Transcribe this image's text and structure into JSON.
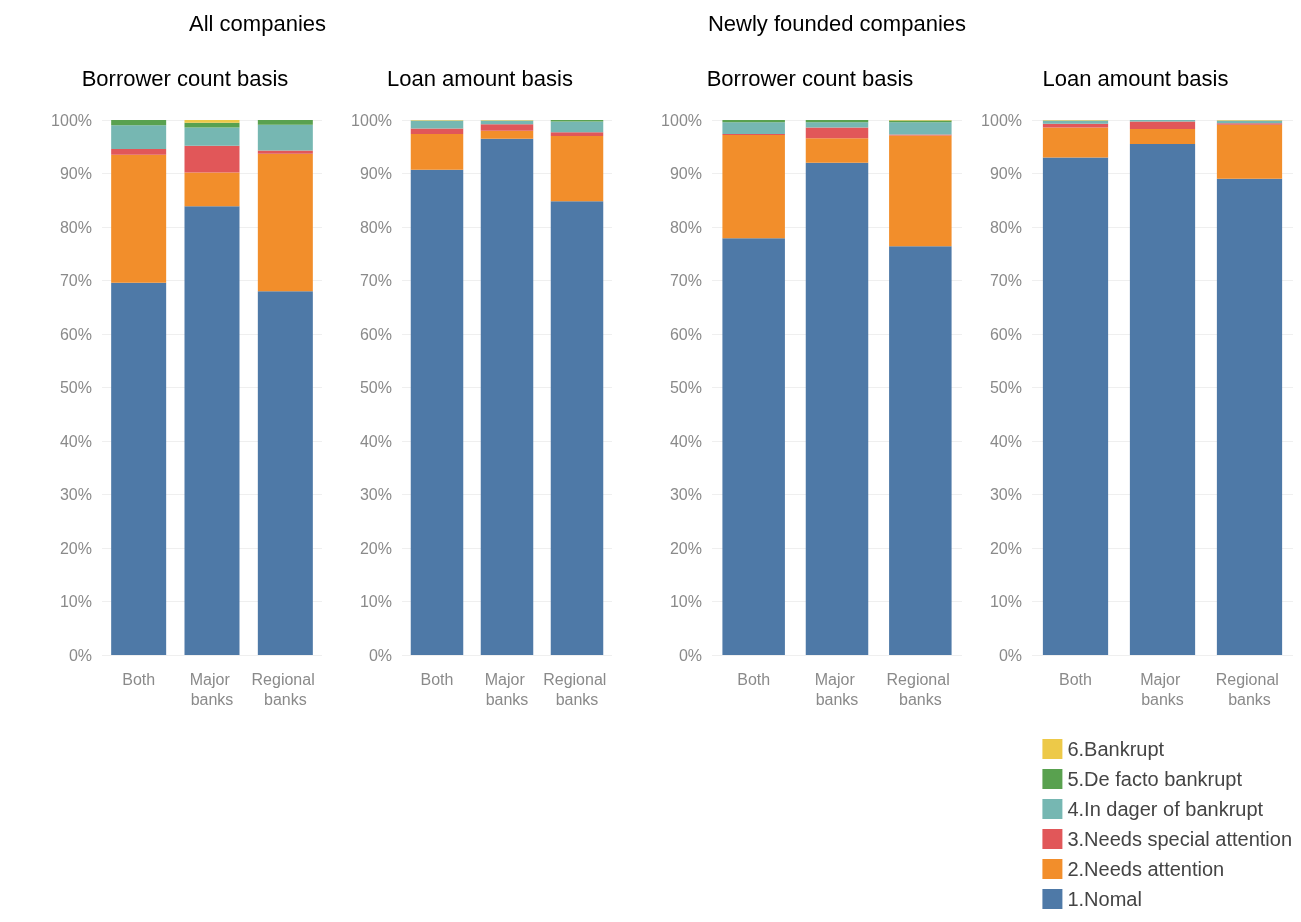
{
  "chart_data": [
    {
      "type": "bar",
      "stacked": true,
      "title": "Borrower count basis",
      "annotations": [
        "All companies"
      ],
      "categories": [
        "Both",
        "Major banks",
        "Regional banks"
      ],
      "ylim": [
        0,
        100
      ],
      "yticks": [
        {
          "value": 0,
          "label": "0%"
        },
        {
          "value": 10,
          "label": "10%"
        },
        {
          "value": 20,
          "label": "20%"
        },
        {
          "value": 30,
          "label": "30%"
        },
        {
          "value": 40,
          "label": "40%"
        },
        {
          "value": 50,
          "label": "50%"
        },
        {
          "value": 60,
          "label": "60%"
        },
        {
          "value": 70,
          "label": "70%"
        },
        {
          "value": 80,
          "label": "80%"
        },
        {
          "value": 90,
          "label": "90%"
        },
        {
          "value": 100,
          "label": "100%"
        }
      ],
      "grid": "y",
      "legend": false,
      "series": [
        {
          "color": "#4e79a7",
          "values": [
            69.6,
            83.9,
            68.0
          ]
        },
        {
          "color": "#f28e2b",
          "values": [
            23.9,
            6.3,
            25.7
          ]
        },
        {
          "color": "#e15759",
          "values": [
            1.1,
            5.0,
            0.6
          ]
        },
        {
          "color": "#76b7b2",
          "values": [
            4.4,
            3.4,
            4.8
          ]
        },
        {
          "color": "#59a14f",
          "values": [
            1.0,
            0.9,
            0.9
          ]
        },
        {
          "color": "#edc948",
          "values": [
            0,
            0.5,
            0
          ]
        }
      ]
    },
    {
      "type": "bar",
      "stacked": true,
      "title": "Loan amount basis",
      "categories": [
        "Both",
        "Major banks",
        "Regional banks"
      ],
      "ylim": [
        0,
        100
      ],
      "yticks": [
        {
          "value": 0,
          "label": "0%"
        },
        {
          "value": 10,
          "label": "10%"
        },
        {
          "value": 20,
          "label": "20%"
        },
        {
          "value": 30,
          "label": "30%"
        },
        {
          "value": 40,
          "label": "40%"
        },
        {
          "value": 50,
          "label": "50%"
        },
        {
          "value": 60,
          "label": "60%"
        },
        {
          "value": 70,
          "label": "70%"
        },
        {
          "value": 80,
          "label": "80%"
        },
        {
          "value": 90,
          "label": "90%"
        },
        {
          "value": 100,
          "label": "100%"
        }
      ],
      "grid": "y",
      "legend": false,
      "series": [
        {
          "color": "#4e79a7",
          "values": [
            90.7,
            96.5,
            84.8
          ]
        },
        {
          "color": "#f28e2b",
          "values": [
            6.7,
            1.5,
            12.2
          ]
        },
        {
          "color": "#e15759",
          "values": [
            1.0,
            1.2,
            0.7
          ]
        },
        {
          "color": "#76b7b2",
          "values": [
            1.5,
            0.7,
            2.0
          ]
        },
        {
          "color": "#59a14f",
          "values": [
            null,
            0,
            0.3
          ]
        },
        {
          "color": "#edc948",
          "values": [
            0.1,
            0.1,
            0
          ]
        }
      ]
    },
    {
      "type": "bar",
      "stacked": true,
      "title": "Borrower count basis",
      "annotations": [
        "Newly founded companies"
      ],
      "categories": [
        "Both",
        "Major banks",
        "Regional banks"
      ],
      "ylim": [
        0,
        100
      ],
      "yticks": [
        {
          "value": 0,
          "label": "0%"
        },
        {
          "value": 10,
          "label": "10%"
        },
        {
          "value": 20,
          "label": "20%"
        },
        {
          "value": 30,
          "label": "30%"
        },
        {
          "value": 40,
          "label": "40%"
        },
        {
          "value": 50,
          "label": "50%"
        },
        {
          "value": 60,
          "label": "60%"
        },
        {
          "value": 70,
          "label": "70%"
        },
        {
          "value": 80,
          "label": "80%"
        },
        {
          "value": 90,
          "label": "90%"
        },
        {
          "value": 100,
          "label": "100%"
        }
      ],
      "grid": "y",
      "legend": false,
      "series": [
        {
          "color": "#4e79a7",
          "values": [
            77.9,
            92.0,
            76.4
          ]
        },
        {
          "color": "#f28e2b",
          "values": [
            19.3,
            4.6,
            20.7
          ]
        },
        {
          "color": "#e15759",
          "values": [
            0.2,
            2.0,
            0.2
          ]
        },
        {
          "color": "#76b7b2",
          "values": [
            2.2,
            1.0,
            2.3
          ]
        },
        {
          "color": "#59a14f",
          "values": [
            0.4,
            0.4,
            0.3
          ]
        },
        {
          "color": "#edc948",
          "values": [
            0,
            0,
            0.1
          ]
        }
      ]
    },
    {
      "type": "bar",
      "stacked": true,
      "title": "Loan amount basis",
      "categories": [
        "Both",
        "Major banks",
        "Regional banks"
      ],
      "ylim": [
        0,
        100
      ],
      "yticks": [
        {
          "value": 0,
          "label": "0%"
        },
        {
          "value": 10,
          "label": "10%"
        },
        {
          "value": 20,
          "label": "20%"
        },
        {
          "value": 30,
          "label": "30%"
        },
        {
          "value": 40,
          "label": "40%"
        },
        {
          "value": 50,
          "label": "50%"
        },
        {
          "value": 60,
          "label": "60%"
        },
        {
          "value": 70,
          "label": "70%"
        },
        {
          "value": 80,
          "label": "80%"
        },
        {
          "value": 90,
          "label": "90%"
        },
        {
          "value": 100,
          "label": "100%"
        }
      ],
      "grid": "y",
      "legend": "bottom right",
      "series": [
        {
          "name": "1.Nomal",
          "color": "#4e79a7",
          "values": [
            93.0,
            95.5,
            89.0
          ]
        },
        {
          "name": "2.Needs attention",
          "color": "#f28e2b",
          "values": [
            5.6,
            2.8,
            10.1
          ]
        },
        {
          "name": "3.Needs special attention",
          "color": "#e15759",
          "values": [
            0.7,
            1.4,
            0.3
          ]
        },
        {
          "name": "4.In dager of bankrupt",
          "color": "#76b7b2",
          "values": [
            0.6,
            0.3,
            0.5
          ]
        },
        {
          "name": "5.De facto bankrupt",
          "color": "#59a14f",
          "values": [
            null,
            0,
            0
          ]
        },
        {
          "name": "6.Bankrupt",
          "color": "#edc948",
          "values": [
            0.1,
            0,
            0.1
          ]
        }
      ]
    }
  ]
}
